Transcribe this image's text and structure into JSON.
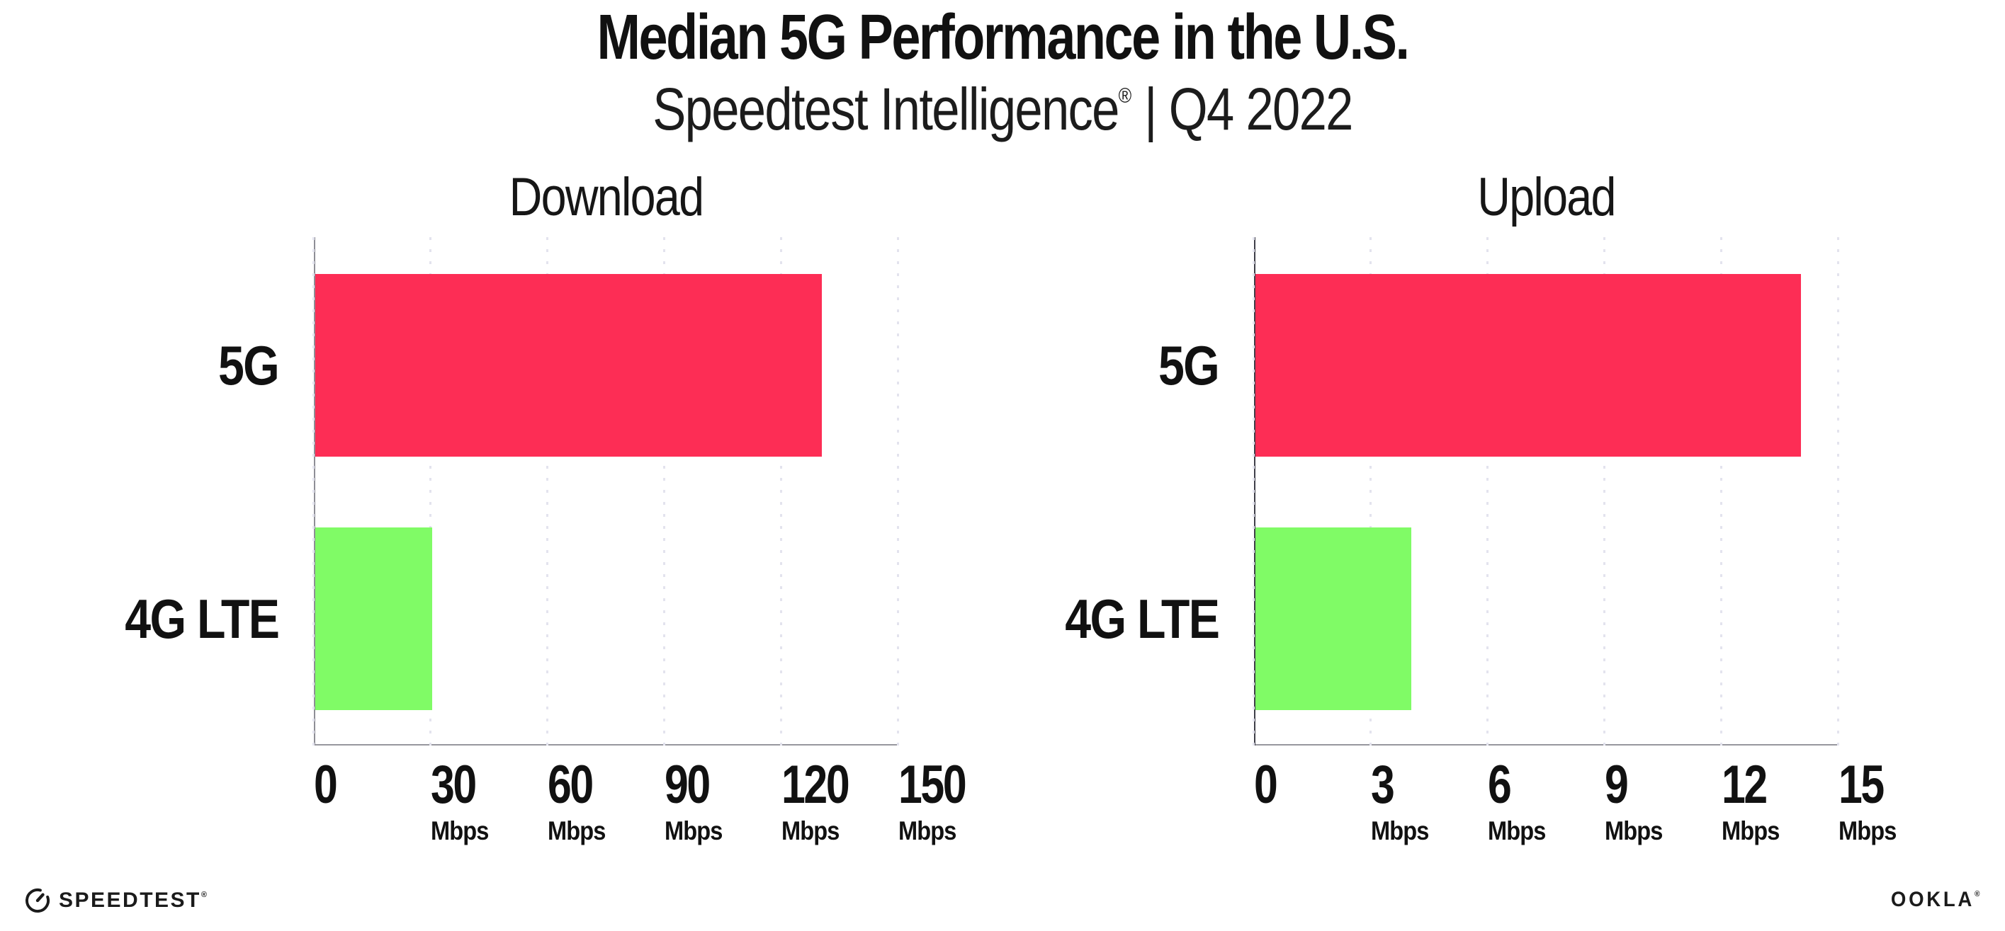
{
  "header": {
    "title": "Median 5G Performance in the U.S.",
    "subtitle_brand": "Speedtest Intelligence",
    "subtitle_reg": "®",
    "subtitle_rest": " | Q4 2022"
  },
  "chart_data": [
    {
      "type": "bar",
      "orientation": "horizontal",
      "title": "Download",
      "categories": [
        "5G",
        "4G LTE"
      ],
      "values": [
        130,
        30
      ],
      "unit": "Mbps",
      "xlim": [
        0,
        150
      ],
      "xticks": [
        0,
        30,
        60,
        90,
        120,
        150
      ],
      "tick_unit_label": "Mbps",
      "grid": "dotted-vertical",
      "legend": "none",
      "bar_colors": [
        "#FD2D55",
        "#80FB66"
      ],
      "y_axis_color": "#8E8E96"
    },
    {
      "type": "bar",
      "orientation": "horizontal",
      "title": "Upload",
      "categories": [
        "5G",
        "4G LTE"
      ],
      "values": [
        14,
        4
      ],
      "unit": "Mbps",
      "xlim": [
        0,
        15
      ],
      "xticks": [
        0,
        3,
        6,
        9,
        12,
        15
      ],
      "tick_unit_label": "Mbps",
      "grid": "dotted-vertical",
      "legend": "none",
      "bar_colors": [
        "#FD2D55",
        "#80FB66"
      ],
      "y_axis_color": "#3F3F49"
    }
  ],
  "footer": {
    "speedtest_label": "SPEEDTEST",
    "speedtest_reg": "®",
    "ookla_label": "OOKLA",
    "ookla_reg": "®"
  },
  "colors": {
    "bar_5g": "#FD2D55",
    "bar_4g_lte": "#80FB66",
    "gridline": "#E3E3EE",
    "x_axis": "#97979E",
    "text": "#111111",
    "background": "#FFFFFF"
  }
}
